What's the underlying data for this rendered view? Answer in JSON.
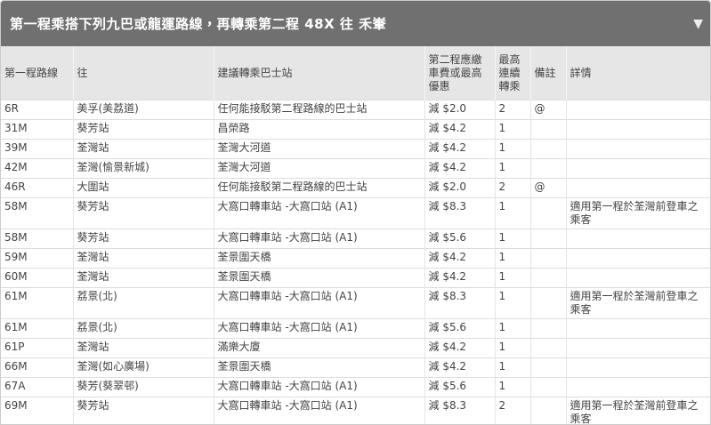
{
  "header": {
    "title": "第一程乘搭下列九巴或龍運路線，再轉乘第二程 48X 往 禾輋",
    "toggle": "▼"
  },
  "table": {
    "columns": [
      "第一程路線",
      "往",
      "建議轉乘巴士站",
      "第二程應繳車費或最高優惠",
      "最高連續轉乘",
      "備註",
      "詳情"
    ],
    "rows": [
      [
        "6R",
        "美孚(美荔道)",
        "任何能接駁第二程路線的巴士站",
        "減 $2.0",
        "2",
        "@",
        null
      ],
      [
        "31M",
        "葵芳站",
        "昌榮路",
        "減 $4.2",
        "1",
        null,
        null
      ],
      [
        "39M",
        "荃灣站",
        "荃灣大河道",
        "減 $4.2",
        "1",
        null,
        null
      ],
      [
        "42M",
        "荃灣(愉景新城)",
        "荃灣大河道",
        "減 $4.2",
        "1",
        null,
        null
      ],
      [
        "46R",
        "大圍站",
        "任何能接駁第二程路線的巴士站",
        "減 $2.0",
        "2",
        "@",
        null
      ],
      [
        "58M",
        "葵芳站",
        "大窩口轉車站 -大窩口站 (A1)",
        "減 $8.3",
        "1",
        null,
        "適用第一程於荃灣前登車之乘客"
      ],
      [
        "58M",
        "葵芳站",
        "大窩口轉車站 -大窩口站 (A1)",
        "減 $5.6",
        "1",
        null,
        null
      ],
      [
        "59M",
        "荃灣站",
        "荃景圍天橋",
        "減 $4.2",
        "1",
        null,
        null
      ],
      [
        "60M",
        "荃灣站",
        "荃景圍天橋",
        "減 $4.2",
        "1",
        null,
        null
      ],
      [
        "61M",
        "荔景(北)",
        "大窩口轉車站 -大窩口站 (A1)",
        "減 $8.3",
        "1",
        null,
        "適用第一程於荃灣前登車之乘客"
      ],
      [
        "61M",
        "荔景(北)",
        "大窩口轉車站 -大窩口站 (A1)",
        "減 $5.6",
        "1",
        null,
        null
      ],
      [
        "61P",
        "荃灣站",
        "滿樂大廈",
        "減 $4.2",
        "1",
        null,
        null
      ],
      [
        "66M",
        "荃灣(如心廣場)",
        "荃景圍天橋",
        "減 $4.2",
        "1",
        null,
        null
      ],
      [
        "67A",
        "葵芳(葵翠邨)",
        "大窩口轉車站 -大窩口站 (A1)",
        "減 $5.6",
        "1",
        null,
        null
      ],
      [
        "69M",
        "葵芳站",
        "大窩口轉車站 -大窩口站 (A1)",
        "減 $8.3",
        "2",
        null,
        "適用第一程於荃灣前登車之乘客"
      ]
    ]
  }
}
